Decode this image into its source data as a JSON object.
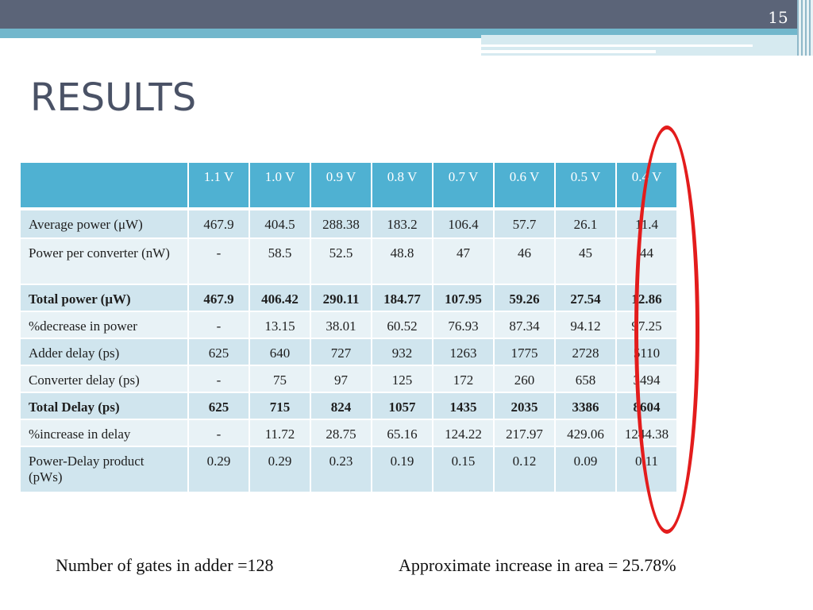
{
  "slide": {
    "number": "15",
    "title": "RESULTS"
  },
  "table": {
    "columns": [
      "",
      "1.1 V",
      "1.0 V",
      "0.9 V",
      "0.8 V",
      "0.7 V",
      "0.6 V",
      "0.5 V",
      "0.4 V"
    ],
    "rows": [
      {
        "label": "Average power (μW)",
        "values": [
          "467.9",
          "404.5",
          "288.38",
          "183.2",
          "106.4",
          "57.7",
          "26.1",
          "11.4"
        ],
        "bold": false
      },
      {
        "label": "Power per converter (nW)",
        "values": [
          "-",
          "58.5",
          "52.5",
          "48.8",
          "47",
          "46",
          "45",
          "44"
        ],
        "bold": false
      },
      {
        "label": "Total power (μW)",
        "values": [
          "467.9",
          "406.42",
          "290.11",
          "184.77",
          "107.95",
          "59.26",
          "27.54",
          "12.86"
        ],
        "bold": true
      },
      {
        "label": "%decrease in power",
        "values": [
          "-",
          "13.15",
          "38.01",
          "60.52",
          "76.93",
          "87.34",
          "94.12",
          "97.25"
        ],
        "bold": false
      },
      {
        "label": "Adder delay (ps)",
        "values": [
          "625",
          "640",
          "727",
          "932",
          "1263",
          "1775",
          "2728",
          "5110"
        ],
        "bold": false
      },
      {
        "label": "Converter delay (ps)",
        "values": [
          "-",
          "75",
          "97",
          "125",
          "172",
          "260",
          "658",
          "3494"
        ],
        "bold": false
      },
      {
        "label": "Total Delay (ps)",
        "values": [
          "625",
          "715",
          "824",
          "1057",
          "1435",
          "2035",
          "3386",
          "8604"
        ],
        "bold": true
      },
      {
        "label": "%increase in delay",
        "values": [
          "-",
          "11.72",
          "28.75",
          "65.16",
          "124.22",
          "217.97",
          "429.06",
          "1244.38"
        ],
        "bold": false
      },
      {
        "label": "Power-Delay product (pWs)",
        "values": [
          "0.29",
          "0.29",
          "0.23",
          "0.19",
          "0.15",
          "0.12",
          "0.09",
          "0.11"
        ],
        "bold": false
      }
    ]
  },
  "footer": {
    "left": "Number of gates in adder =128",
    "right": "Approximate increase in area = 25.78%"
  },
  "colors": {
    "header_band": "#5b6478",
    "accent_teal": "#4fb1d2",
    "row_dark": "#d0e5ee",
    "row_light": "#e8f2f6",
    "highlight": "#e31c1c"
  }
}
